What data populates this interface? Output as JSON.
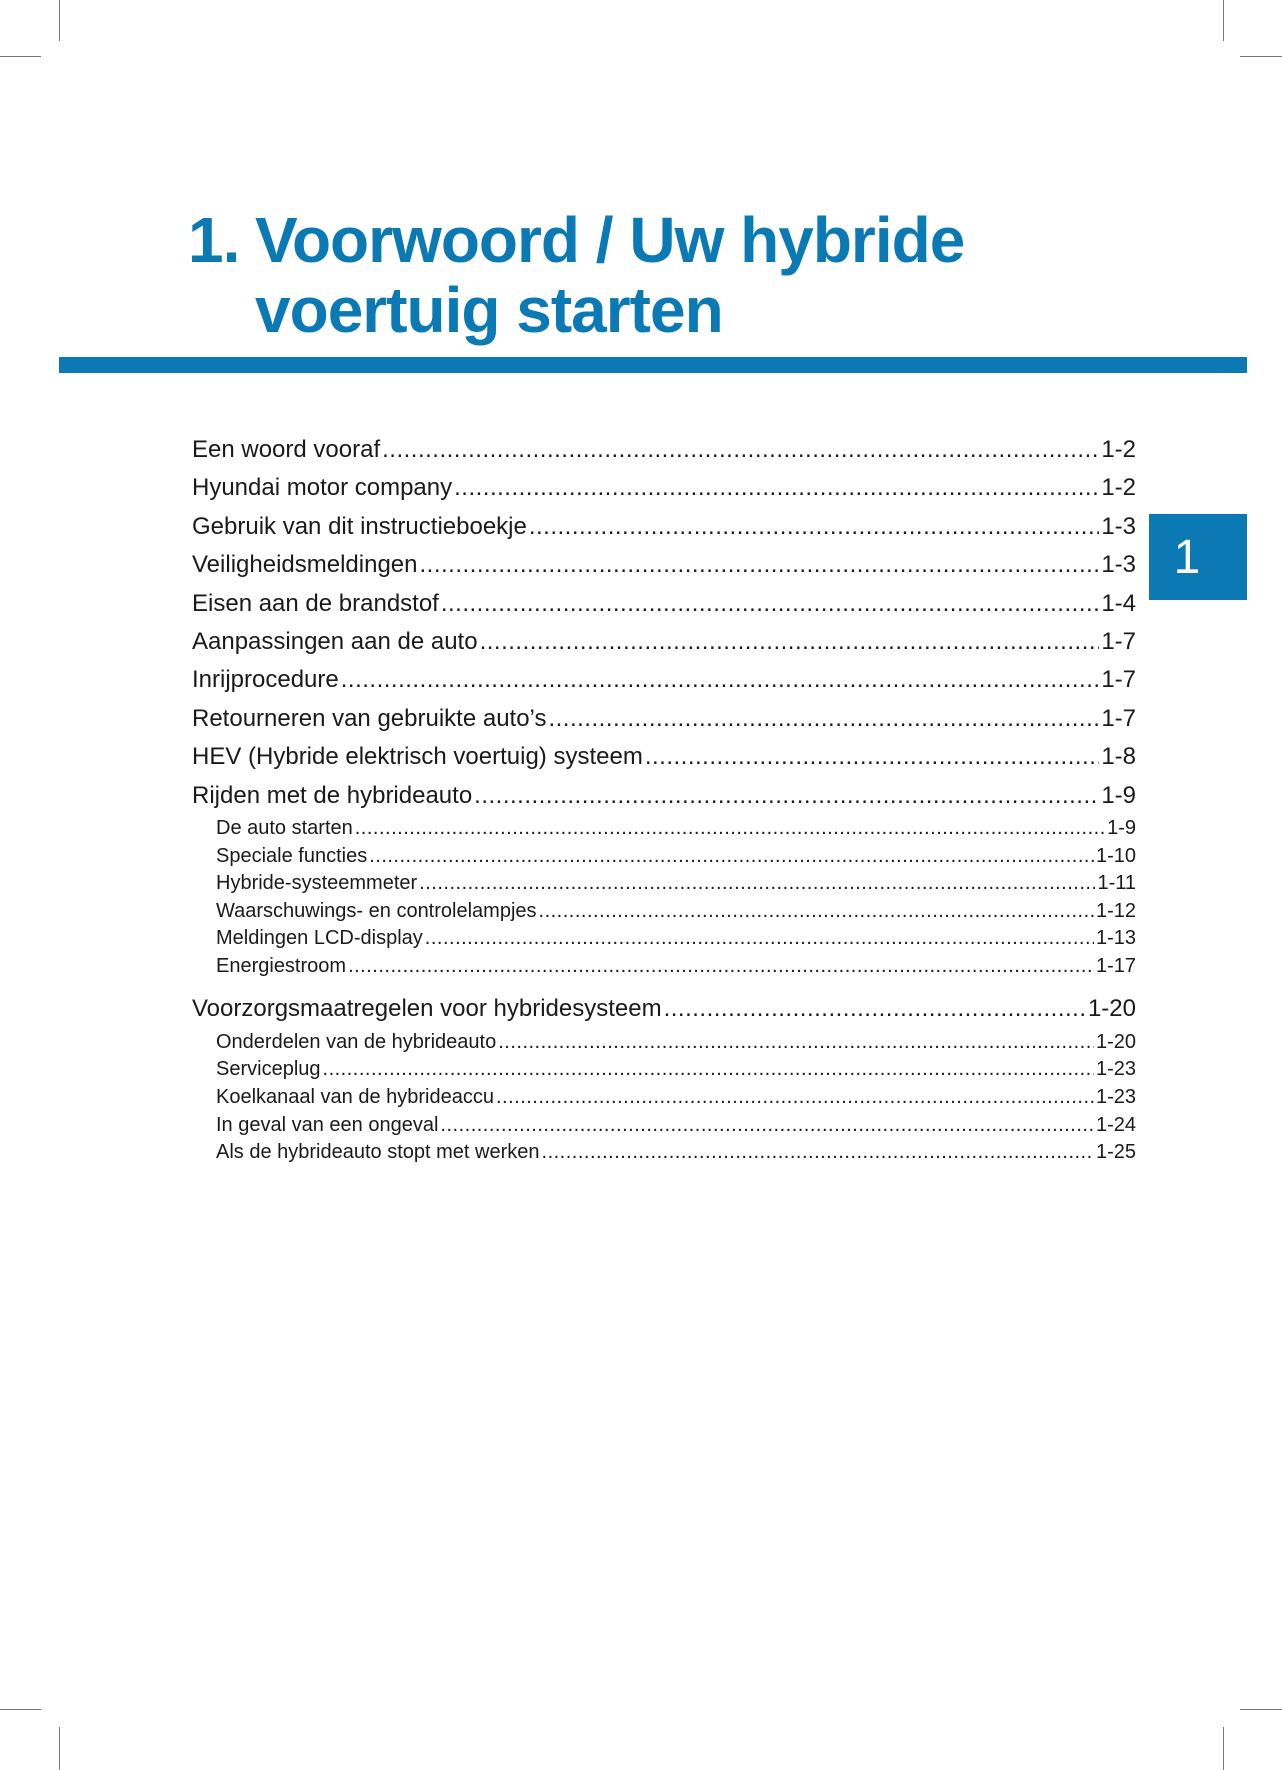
{
  "chapter": {
    "number": "1.",
    "title": "Voorwoord / Uw hybride voertuig starten",
    "tab_label": "1",
    "accent_color": "#0a79b4"
  },
  "toc": [
    {
      "label": "Een woord vooraf",
      "page": "1-2",
      "level": 1
    },
    {
      "label": "Hyundai motor company",
      "page": "1-2",
      "level": 1
    },
    {
      "label": "Gebruik van dit instructieboekje",
      "page": "1-3",
      "level": 1
    },
    {
      "label": "Veiligheidsmeldingen",
      "page": "1-3",
      "level": 1
    },
    {
      "label": "Eisen aan de brandstof",
      "page": "1-4",
      "level": 1
    },
    {
      "label": "Aanpassingen aan de auto",
      "page": "1-7",
      "level": 1
    },
    {
      "label": "Inrijprocedure",
      "page": "1-7",
      "level": 1
    },
    {
      "label": "Retourneren van gebruikte auto’s",
      "page": "1-7",
      "level": 1
    },
    {
      "label": "HEV (Hybride elektrisch voertuig) systeem",
      "page": "1-8",
      "level": 1
    },
    {
      "label": "Rijden met de hybrideauto",
      "page": "1-9",
      "level": 1
    },
    {
      "label": "De auto starten",
      "page": "1-9",
      "level": 2
    },
    {
      "label": "Speciale functies",
      "page": "1-10",
      "level": 2
    },
    {
      "label": "Hybride-systeemmeter",
      "page": "1-11",
      "level": 2
    },
    {
      "label": "Waarschuwings- en controlelampjes",
      "page": "1-12",
      "level": 2
    },
    {
      "label": "Meldingen LCD-display",
      "page": "1-13",
      "level": 2
    },
    {
      "label": "Energiestroom",
      "page": "1-17",
      "level": 2
    },
    {
      "label": "Voorzorgsmaatregelen voor hybridesysteem",
      "page": "1-20",
      "level": 1
    },
    {
      "label": "Onderdelen van de hybrideauto",
      "page": "1-20",
      "level": 2
    },
    {
      "label": "Serviceplug",
      "page": "1-23",
      "level": 2
    },
    {
      "label": "Koelkanaal van de hybrideaccu",
      "page": "1-23",
      "level": 2
    },
    {
      "label": "In geval van een ongeval",
      "page": "1-24",
      "level": 2
    },
    {
      "label": "Als de hybrideauto stopt met werken",
      "page": "1-25",
      "level": 2
    }
  ]
}
